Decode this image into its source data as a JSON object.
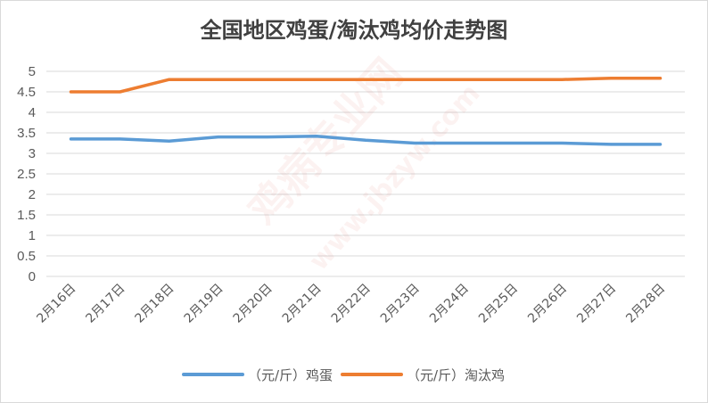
{
  "chart_data": {
    "type": "line",
    "title": "全国地区鸡蛋/淘汰鸡均价走势图",
    "categories": [
      "2月16日",
      "2月17日",
      "2月18日",
      "2月19日",
      "2月20日",
      "2月21日",
      "2月22日",
      "2月23日",
      "2月24日",
      "2月25日",
      "2月26日",
      "2月27日",
      "2月28日"
    ],
    "ylim": [
      0,
      5
    ],
    "yticks": [
      "0",
      "0.5",
      "1",
      "1.5",
      "2",
      "2.5",
      "3",
      "3.5",
      "4",
      "4.5",
      "5"
    ],
    "grid": true,
    "legend_position": "bottom",
    "series": [
      {
        "name": "（元/斤）鸡蛋",
        "color": "#5b9bd5",
        "values": [
          3.35,
          3.35,
          3.3,
          3.4,
          3.4,
          3.42,
          3.32,
          3.25,
          3.25,
          3.25,
          3.25,
          3.22,
          3.22
        ]
      },
      {
        "name": "（元/斤）淘汰鸡",
        "color": "#ed7d31",
        "values": [
          4.5,
          4.5,
          4.8,
          4.8,
          4.8,
          4.8,
          4.8,
          4.8,
          4.8,
          4.8,
          4.8,
          4.83,
          4.83
        ]
      }
    ]
  },
  "watermark": {
    "main": "鸡病专业网",
    "url": "www.jbzyw.com"
  }
}
